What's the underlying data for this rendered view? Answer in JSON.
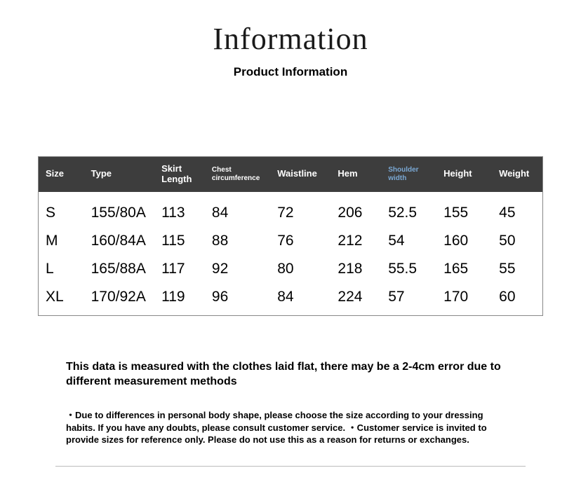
{
  "title": "Information",
  "subtitle": "Product Information",
  "table": {
    "columns": [
      {
        "label": "Size",
        "class": ""
      },
      {
        "label": "Type",
        "class": ""
      },
      {
        "label": "Skirt Length",
        "class": ""
      },
      {
        "label": "Chest circumference",
        "class": "small"
      },
      {
        "label": "Waistline",
        "class": ""
      },
      {
        "label": "Hem",
        "class": ""
      },
      {
        "label": "Shoulder width",
        "class": "hl"
      },
      {
        "label": "Height",
        "class": ""
      },
      {
        "label": "Weight",
        "class": ""
      }
    ],
    "rows": [
      [
        "S",
        "155/80A",
        "113",
        "84",
        "72",
        "206",
        "52.5",
        "155",
        "45"
      ],
      [
        "M",
        "160/84A",
        "115",
        "88",
        "76",
        "212",
        "54",
        "160",
        "50"
      ],
      [
        "L",
        "165/88A",
        "117",
        "92",
        "80",
        "218",
        "55.5",
        "165",
        "55"
      ],
      [
        "XL",
        "170/92A",
        "119",
        "96",
        "84",
        "224",
        "57",
        "170",
        "60"
      ]
    ],
    "col_widths_pct": [
      9,
      14,
      10,
      13,
      12,
      10,
      11,
      11,
      10
    ],
    "header_bg": "#3d3d3d",
    "header_fg": "#ffffff",
    "highlight_fg": "#7aa8d4",
    "cell_fontsize": 21,
    "header_fontsize": 13,
    "border_color": "#888888"
  },
  "note_primary": "This data is measured with the clothes laid flat, there may be a 2-4cm error due to different measurement methods",
  "note_secondary": "・Due to differences in personal body shape, please choose the size according to your dressing habits. If you have any doubts, please consult customer service. ・Customer service is invited to provide sizes for reference only. Please do not use this as a reason for returns or exchanges.",
  "colors": {
    "page_bg": "#ffffff",
    "text": "#000000",
    "rule": "#bcbcbc"
  }
}
